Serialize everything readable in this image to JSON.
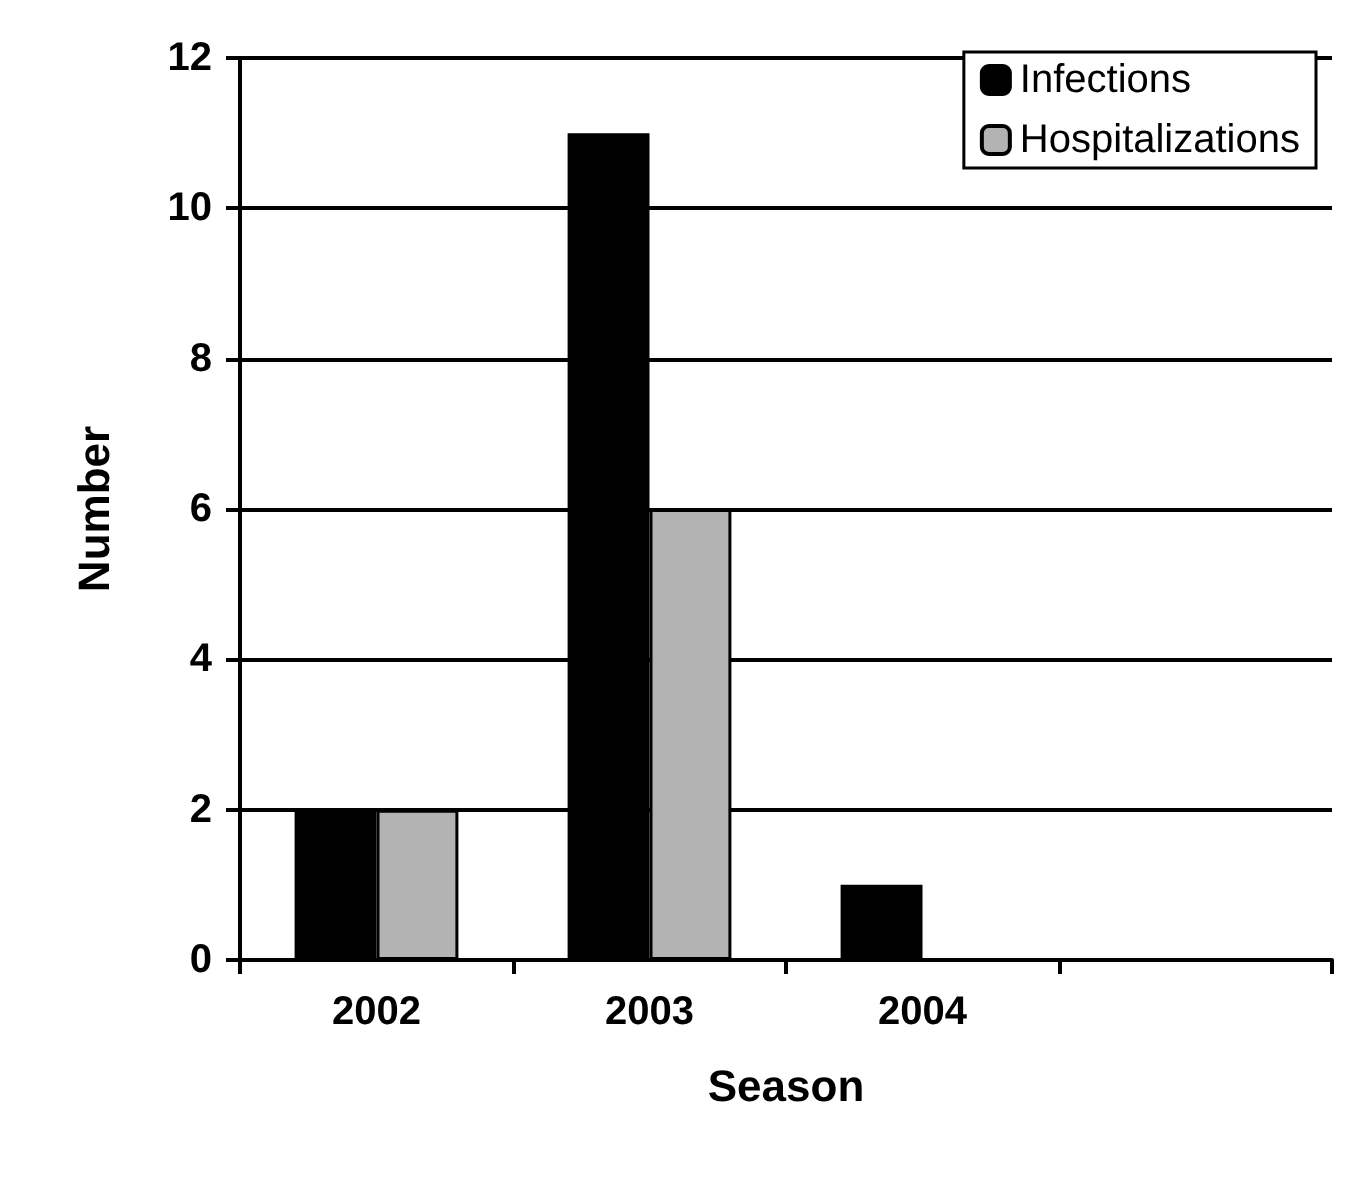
{
  "chart_data": {
    "type": "bar",
    "xlabel": "Season",
    "ylabel": "Number",
    "categories": [
      "2002",
      "2003",
      "2004",
      null
    ],
    "series": [
      {
        "name": "Infections",
        "color": "#000000",
        "values": [
          2,
          11,
          1,
          null
        ]
      },
      {
        "name": "Hospitalizations",
        "color": "#b3b3b3",
        "values": [
          2,
          6,
          0,
          null
        ]
      }
    ],
    "ylim": [
      0,
      12
    ],
    "yticks": [
      0,
      2,
      4,
      6,
      8,
      10,
      12
    ],
    "grid": "y",
    "legend": "top right"
  }
}
